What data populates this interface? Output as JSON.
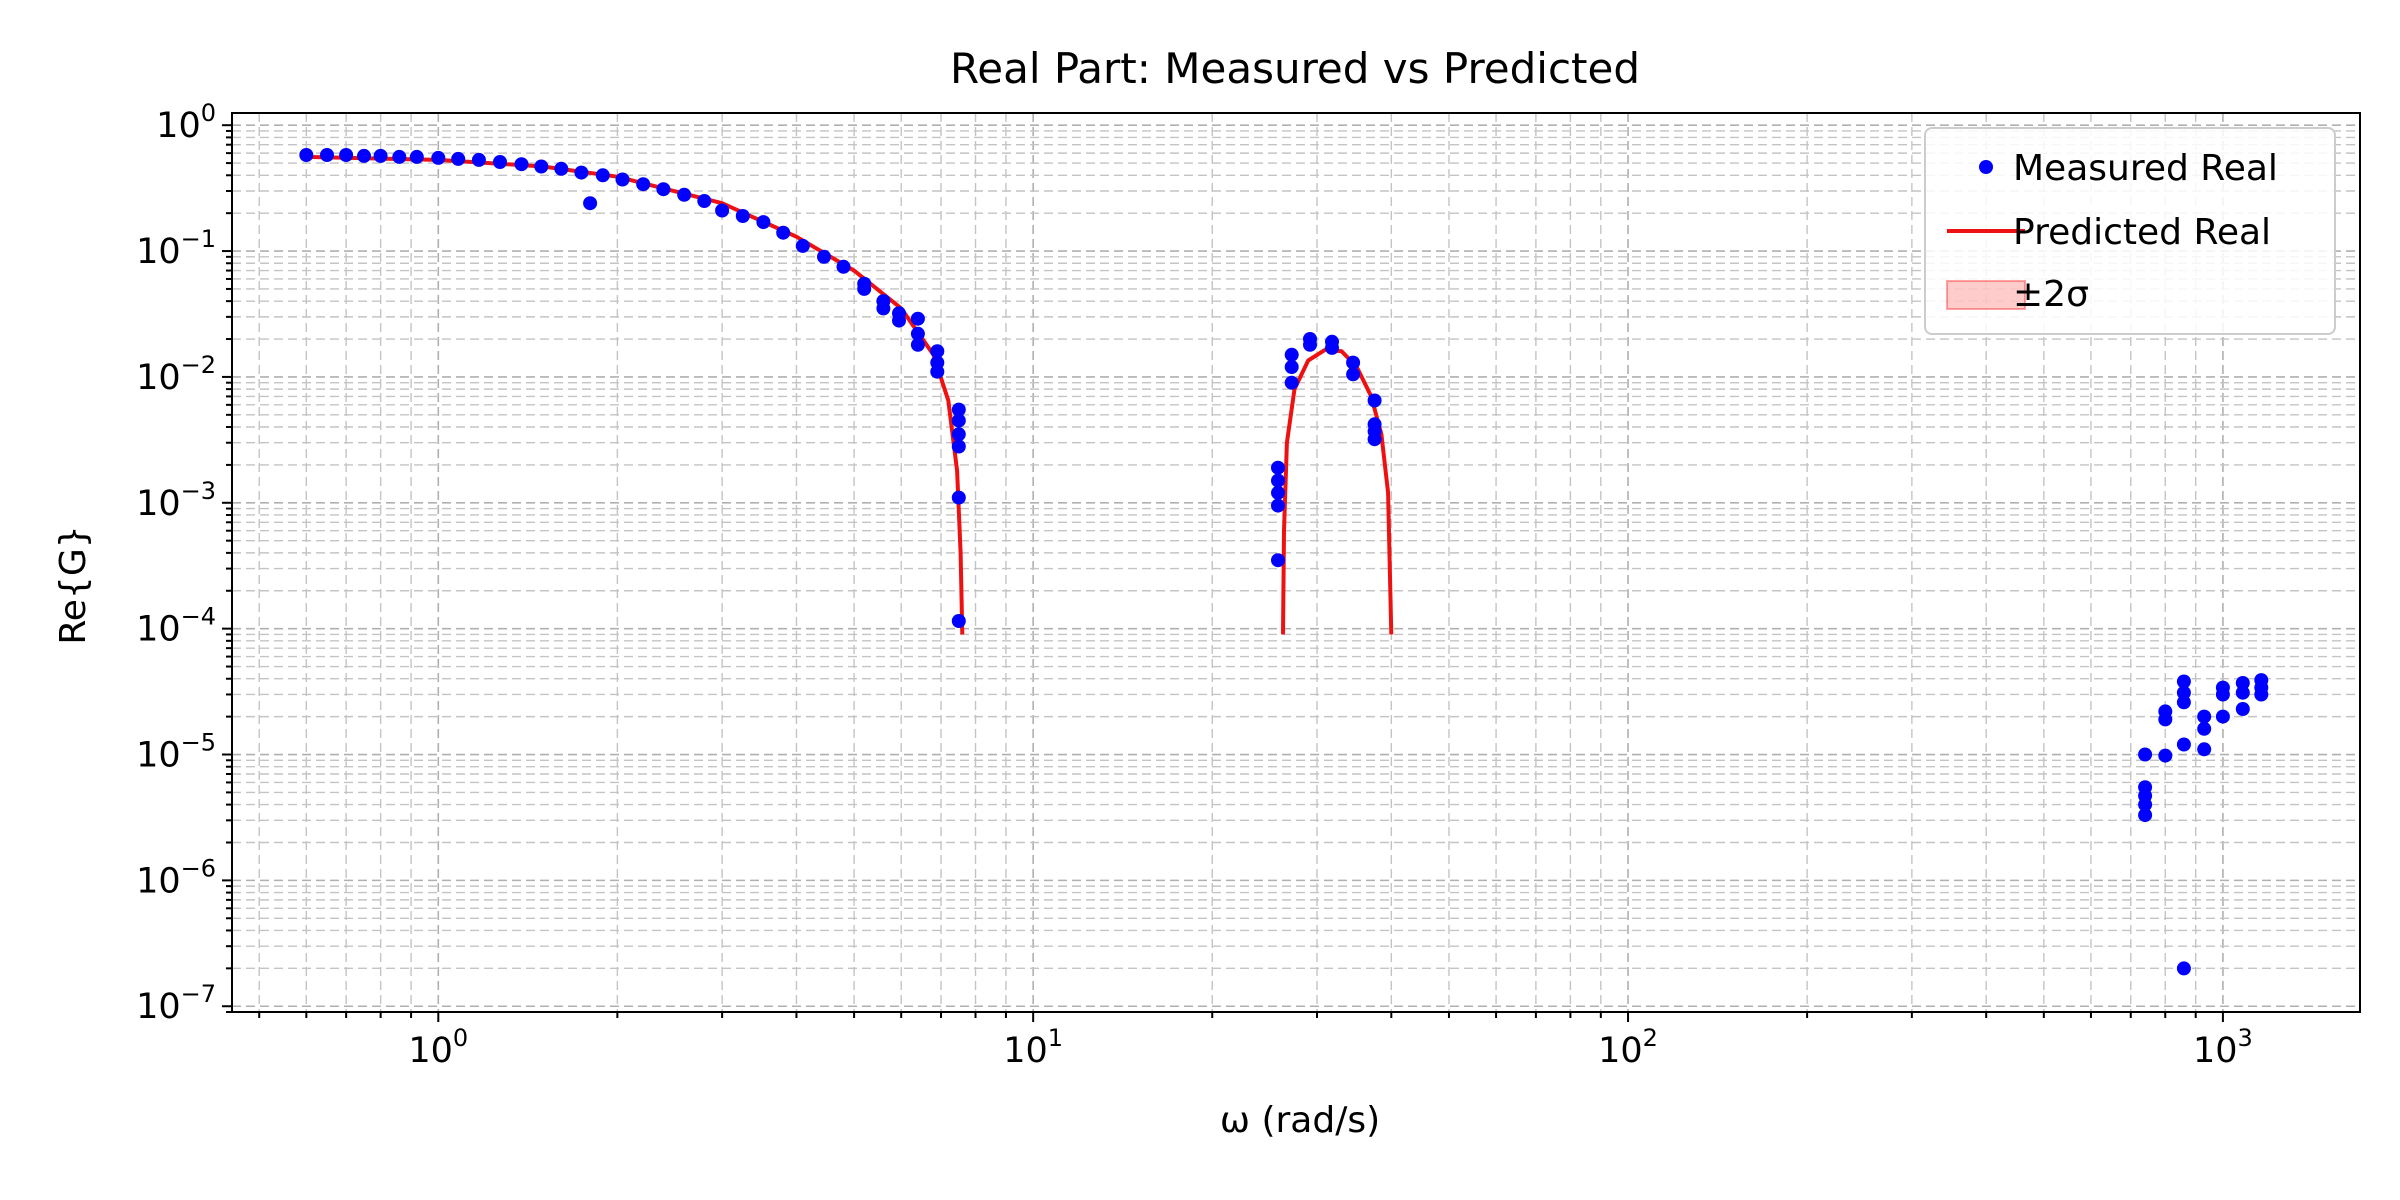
{
  "chart_data": {
    "type": "scatter",
    "title": "Real Part: Measured vs Predicted",
    "xlabel": "ω (rad/s)",
    "ylabel": "Re{G}",
    "xscale": "log",
    "yscale": "log",
    "xlim": [
      0.45,
      1700
    ],
    "ylim": [
      9e-08,
      1.25
    ],
    "grid": "major and minor, dashed",
    "legend_position": "top-right",
    "x_ticks": [
      {
        "base": "10",
        "exp": "0",
        "value": 1
      },
      {
        "base": "10",
        "exp": "1",
        "value": 10
      },
      {
        "base": "10",
        "exp": "2",
        "value": 100
      },
      {
        "base": "10",
        "exp": "3",
        "value": 1000
      }
    ],
    "y_ticks": [
      {
        "base": "10",
        "exp": "0",
        "value": 1
      },
      {
        "base": "10",
        "exp": "−1",
        "value": 0.1
      },
      {
        "base": "10",
        "exp": "−2",
        "value": 0.01
      },
      {
        "base": "10",
        "exp": "−3",
        "value": 0.001
      },
      {
        "base": "10",
        "exp": "−4",
        "value": 0.0001
      },
      {
        "base": "10",
        "exp": "−5",
        "value": 1e-05
      },
      {
        "base": "10",
        "exp": "−6",
        "value": 1e-06
      },
      {
        "base": "10",
        "exp": "−7",
        "value": 1e-07
      }
    ],
    "series": [
      {
        "name": "Measured Real",
        "kind": "scatter",
        "color": "#0000ff",
        "points": [
          [
            0.6,
            0.58
          ],
          [
            0.65,
            0.58
          ],
          [
            0.7,
            0.58
          ],
          [
            0.75,
            0.57
          ],
          [
            0.8,
            0.57
          ],
          [
            0.86,
            0.56
          ],
          [
            0.92,
            0.56
          ],
          [
            1.0,
            0.55
          ],
          [
            1.08,
            0.54
          ],
          [
            1.17,
            0.53
          ],
          [
            1.27,
            0.51
          ],
          [
            1.38,
            0.49
          ],
          [
            1.49,
            0.47
          ],
          [
            1.61,
            0.45
          ],
          [
            1.74,
            0.42
          ],
          [
            1.8,
            0.24
          ],
          [
            1.89,
            0.4
          ],
          [
            2.04,
            0.37
          ],
          [
            2.21,
            0.34
          ],
          [
            2.39,
            0.31
          ],
          [
            2.59,
            0.28
          ],
          [
            2.8,
            0.25
          ],
          [
            3.0,
            0.21
          ],
          [
            3.25,
            0.19
          ],
          [
            3.52,
            0.17
          ],
          [
            3.8,
            0.14
          ],
          [
            4.1,
            0.11
          ],
          [
            4.45,
            0.09
          ],
          [
            4.8,
            0.075
          ],
          [
            5.2,
            0.055
          ],
          [
            5.2,
            0.05
          ],
          [
            5.6,
            0.04
          ],
          [
            5.6,
            0.035
          ],
          [
            5.95,
            0.032
          ],
          [
            5.95,
            0.028
          ],
          [
            6.4,
            0.029
          ],
          [
            6.4,
            0.022
          ],
          [
            6.4,
            0.018
          ],
          [
            6.9,
            0.016
          ],
          [
            6.9,
            0.013
          ],
          [
            6.9,
            0.011
          ],
          [
            7.5,
            0.0055
          ],
          [
            7.5,
            0.0045
          ],
          [
            7.5,
            0.0035
          ],
          [
            7.5,
            0.0028
          ],
          [
            7.5,
            0.0011
          ],
          [
            7.5,
            0.000115
          ],
          [
            25.8,
            0.0019
          ],
          [
            25.8,
            0.0015
          ],
          [
            25.8,
            0.0012
          ],
          [
            25.8,
            0.00095
          ],
          [
            25.8,
            0.00035
          ],
          [
            27.2,
            0.015
          ],
          [
            27.2,
            0.012
          ],
          [
            27.2,
            0.009
          ],
          [
            29.2,
            0.02
          ],
          [
            29.2,
            0.018
          ],
          [
            31.8,
            0.019
          ],
          [
            31.8,
            0.017
          ],
          [
            34.5,
            0.013
          ],
          [
            34.5,
            0.0105
          ],
          [
            37.5,
            0.0065
          ],
          [
            37.5,
            0.0042
          ],
          [
            37.5,
            0.0037
          ],
          [
            37.5,
            0.0032
          ],
          [
            740,
            1e-05
          ],
          [
            740,
            5.5e-06
          ],
          [
            740,
            4.7e-06
          ],
          [
            740,
            4e-06
          ],
          [
            740,
            3.3e-06
          ],
          [
            800,
            2.2e-05
          ],
          [
            800,
            1.9e-05
          ],
          [
            800,
            9.8e-06
          ],
          [
            860,
            3.8e-05
          ],
          [
            860,
            3.1e-05
          ],
          [
            860,
            2.6e-05
          ],
          [
            860,
            1.2e-05
          ],
          [
            860,
            2e-07
          ],
          [
            930,
            2e-05
          ],
          [
            930,
            1.6e-05
          ],
          [
            930,
            1.1e-05
          ],
          [
            1000,
            3.4e-05
          ],
          [
            1000,
            3e-05
          ],
          [
            1000,
            2e-05
          ],
          [
            1080,
            3.7e-05
          ],
          [
            1080,
            3.1e-05
          ],
          [
            1080,
            2.3e-05
          ],
          [
            1160,
            3.9e-05
          ],
          [
            1160,
            3.4e-05
          ],
          [
            1160,
            3e-05
          ]
        ]
      },
      {
        "name": "Predicted Real",
        "kind": "line",
        "color": "#ee1111",
        "segments": [
          [
            [
              0.6,
              0.56
            ],
            [
              1.0,
              0.53
            ],
            [
              1.5,
              0.47
            ],
            [
              2.0,
              0.39
            ],
            [
              3.0,
              0.24
            ],
            [
              4.0,
              0.13
            ],
            [
              5.0,
              0.07
            ],
            [
              6.0,
              0.035
            ],
            [
              6.8,
              0.015
            ],
            [
              7.2,
              0.0065
            ],
            [
              7.45,
              0.0018
            ],
            [
              7.55,
              0.0004
            ],
            [
              7.6,
              9e-05
            ]
          ],
          [
            [
              26.3,
              9e-05
            ],
            [
              26.4,
              0.0006
            ],
            [
              26.7,
              0.003
            ],
            [
              27.5,
              0.008
            ],
            [
              29.0,
              0.0135
            ],
            [
              31.0,
              0.0165
            ],
            [
              33.0,
              0.016
            ],
            [
              35.0,
              0.012
            ],
            [
              37.0,
              0.007
            ],
            [
              38.5,
              0.0035
            ],
            [
              39.5,
              0.0012
            ],
            [
              40.0,
              9e-05
            ]
          ]
        ]
      },
      {
        "name": "±2σ",
        "kind": "band",
        "color": "#ff0000"
      }
    ]
  }
}
